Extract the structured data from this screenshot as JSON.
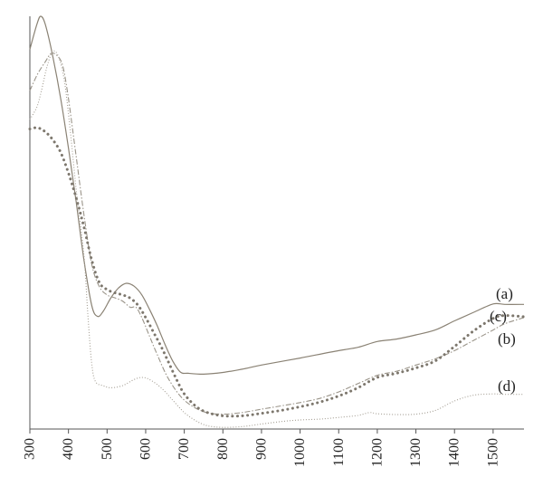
{
  "chart_data": {
    "type": "line",
    "title": "",
    "xlabel": "",
    "ylabel": "",
    "xlim": [
      300,
      1580
    ],
    "ylim": [
      0,
      1
    ],
    "x_ticks": [
      300,
      400,
      500,
      600,
      700,
      800,
      900,
      1000,
      1100,
      1200,
      1300,
      1400,
      1500
    ],
    "x_tick_labels": [
      "300",
      "400",
      "500",
      "600",
      "700",
      "800",
      "900",
      "1000",
      "1100",
      "1200",
      "1300",
      "1400",
      "1500"
    ],
    "grid": false,
    "legend": "labels at right end of each curve",
    "series": [
      {
        "name": "(a)",
        "style": "solid",
        "color": "#8a8274",
        "points": [
          [
            300,
            0.92
          ],
          [
            318,
            0.98
          ],
          [
            328,
            1.0
          ],
          [
            340,
            0.98
          ],
          [
            360,
            0.9
          ],
          [
            380,
            0.8
          ],
          [
            400,
            0.68
          ],
          [
            420,
            0.55
          ],
          [
            440,
            0.41
          ],
          [
            460,
            0.3
          ],
          [
            475,
            0.273
          ],
          [
            490,
            0.285
          ],
          [
            510,
            0.318
          ],
          [
            530,
            0.342
          ],
          [
            550,
            0.353
          ],
          [
            570,
            0.346
          ],
          [
            590,
            0.325
          ],
          [
            610,
            0.29
          ],
          [
            630,
            0.25
          ],
          [
            650,
            0.205
          ],
          [
            670,
            0.165
          ],
          [
            690,
            0.138
          ],
          [
            710,
            0.135
          ],
          [
            750,
            0.133
          ],
          [
            800,
            0.137
          ],
          [
            850,
            0.145
          ],
          [
            900,
            0.155
          ],
          [
            1000,
            0.172
          ],
          [
            1100,
            0.19
          ],
          [
            1150,
            0.198
          ],
          [
            1200,
            0.212
          ],
          [
            1250,
            0.218
          ],
          [
            1300,
            0.228
          ],
          [
            1350,
            0.24
          ],
          [
            1400,
            0.262
          ],
          [
            1450,
            0.283
          ],
          [
            1500,
            0.303
          ],
          [
            1530,
            0.302
          ],
          [
            1580,
            0.302
          ]
        ]
      },
      {
        "name": "(b)",
        "style": "dash-dot",
        "color": "#9a9489",
        "points": [
          [
            300,
            0.82
          ],
          [
            320,
            0.86
          ],
          [
            340,
            0.89
          ],
          [
            355,
            0.91
          ],
          [
            370,
            0.905
          ],
          [
            385,
            0.88
          ],
          [
            400,
            0.8
          ],
          [
            420,
            0.66
          ],
          [
            440,
            0.52
          ],
          [
            460,
            0.4
          ],
          [
            480,
            0.345
          ],
          [
            500,
            0.325
          ],
          [
            520,
            0.318
          ],
          [
            540,
            0.31
          ],
          [
            560,
            0.295
          ],
          [
            575,
            0.295
          ],
          [
            590,
            0.27
          ],
          [
            610,
            0.225
          ],
          [
            630,
            0.18
          ],
          [
            660,
            0.12
          ],
          [
            700,
            0.07
          ],
          [
            750,
            0.042
          ],
          [
            800,
            0.036
          ],
          [
            850,
            0.04
          ],
          [
            900,
            0.048
          ],
          [
            950,
            0.056
          ],
          [
            1000,
            0.064
          ],
          [
            1050,
            0.074
          ],
          [
            1100,
            0.09
          ],
          [
            1150,
            0.11
          ],
          [
            1200,
            0.13
          ],
          [
            1250,
            0.14
          ],
          [
            1300,
            0.155
          ],
          [
            1350,
            0.17
          ],
          [
            1400,
            0.19
          ],
          [
            1450,
            0.215
          ],
          [
            1500,
            0.24
          ],
          [
            1530,
            0.255
          ],
          [
            1580,
            0.27
          ]
        ]
      },
      {
        "name": "(c)",
        "style": "dotted-heavy",
        "color": "#7d776d",
        "points": [
          [
            300,
            0.727
          ],
          [
            320,
            0.73
          ],
          [
            340,
            0.72
          ],
          [
            360,
            0.7
          ],
          [
            380,
            0.67
          ],
          [
            400,
            0.62
          ],
          [
            420,
            0.56
          ],
          [
            440,
            0.49
          ],
          [
            460,
            0.41
          ],
          [
            480,
            0.355
          ],
          [
            500,
            0.338
          ],
          [
            520,
            0.33
          ],
          [
            540,
            0.325
          ],
          [
            560,
            0.317
          ],
          [
            580,
            0.3
          ],
          [
            600,
            0.27
          ],
          [
            620,
            0.235
          ],
          [
            640,
            0.2
          ],
          [
            660,
            0.16
          ],
          [
            680,
            0.12
          ],
          [
            700,
            0.085
          ],
          [
            730,
            0.055
          ],
          [
            760,
            0.04
          ],
          [
            800,
            0.032
          ],
          [
            850,
            0.032
          ],
          [
            900,
            0.038
          ],
          [
            950,
            0.045
          ],
          [
            1000,
            0.054
          ],
          [
            1050,
            0.065
          ],
          [
            1100,
            0.08
          ],
          [
            1150,
            0.1
          ],
          [
            1200,
            0.125
          ],
          [
            1250,
            0.135
          ],
          [
            1300,
            0.148
          ],
          [
            1350,
            0.165
          ],
          [
            1400,
            0.2
          ],
          [
            1450,
            0.238
          ],
          [
            1500,
            0.268
          ],
          [
            1530,
            0.275
          ],
          [
            1580,
            0.272
          ]
        ]
      },
      {
        "name": "(d)",
        "style": "dotted-fine",
        "color": "#a39d92",
        "points": [
          [
            300,
            0.75
          ],
          [
            318,
            0.78
          ],
          [
            330,
            0.82
          ],
          [
            345,
            0.88
          ],
          [
            360,
            0.915
          ],
          [
            375,
            0.9
          ],
          [
            390,
            0.84
          ],
          [
            405,
            0.72
          ],
          [
            420,
            0.58
          ],
          [
            440,
            0.42
          ],
          [
            450,
            0.28
          ],
          [
            460,
            0.16
          ],
          [
            470,
            0.115
          ],
          [
            490,
            0.105
          ],
          [
            510,
            0.1
          ],
          [
            540,
            0.105
          ],
          [
            570,
            0.12
          ],
          [
            590,
            0.125
          ],
          [
            610,
            0.12
          ],
          [
            640,
            0.1
          ],
          [
            670,
            0.07
          ],
          [
            700,
            0.04
          ],
          [
            730,
            0.02
          ],
          [
            760,
            0.008
          ],
          [
            800,
            0.004
          ],
          [
            850,
            0.006
          ],
          [
            900,
            0.012
          ],
          [
            950,
            0.018
          ],
          [
            1000,
            0.022
          ],
          [
            1050,
            0.024
          ],
          [
            1100,
            0.028
          ],
          [
            1150,
            0.033
          ],
          [
            1180,
            0.04
          ],
          [
            1200,
            0.037
          ],
          [
            1250,
            0.035
          ],
          [
            1300,
            0.036
          ],
          [
            1350,
            0.045
          ],
          [
            1400,
            0.068
          ],
          [
            1450,
            0.082
          ],
          [
            1500,
            0.085
          ],
          [
            1530,
            0.084
          ],
          [
            1580,
            0.084
          ]
        ]
      }
    ]
  }
}
